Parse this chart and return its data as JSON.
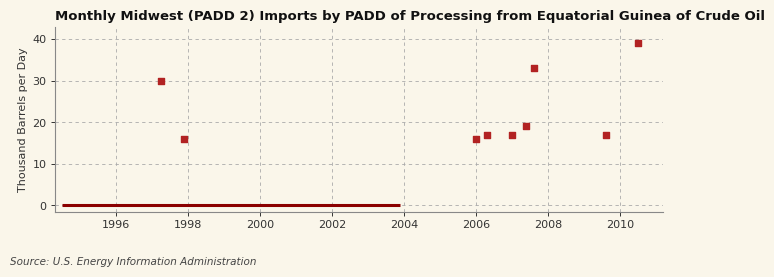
{
  "title": "Monthly Midwest (PADD 2) Imports by PADD of Processing from Equatorial Guinea of Crude Oil",
  "ylabel": "Thousand Barrels per Day",
  "source": "Source: U.S. Energy Information Administration",
  "background_color": "#faf6ea",
  "plot_bg_color": "#faf6ea",
  "marker_color": "#b22222",
  "line_color": "#8b0000",
  "grid_color": "#aaaaaa",
  "xlim": [
    1994.3,
    2011.2
  ],
  "ylim": [
    -1.5,
    43
  ],
  "yticks": [
    0,
    10,
    20,
    30,
    40
  ],
  "xticks": [
    1996,
    1998,
    2000,
    2002,
    2004,
    2006,
    2008,
    2010
  ],
  "scatter_x": [
    1997.25,
    1997.9,
    2006.0,
    2006.3,
    2007.0,
    2007.4,
    2007.6,
    2009.6,
    2010.5
  ],
  "scatter_y": [
    30,
    16,
    16,
    17,
    17,
    19,
    33,
    17,
    39
  ],
  "zero_line_x_start": 1994.5,
  "zero_line_x_end": 2003.9,
  "title_fontsize": 9.5,
  "ylabel_fontsize": 8,
  "tick_fontsize": 8,
  "source_fontsize": 7.5
}
